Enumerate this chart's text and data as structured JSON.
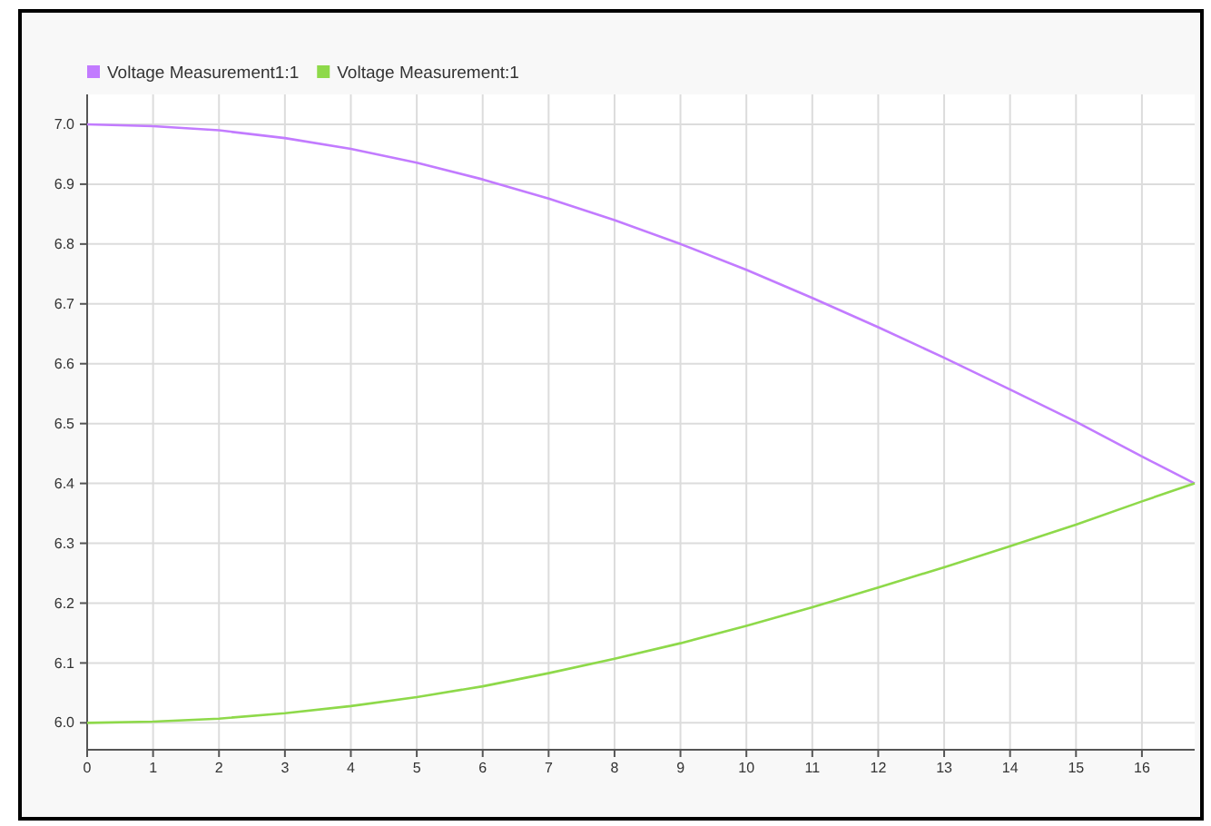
{
  "chart_data": {
    "type": "line",
    "x": [
      0,
      1,
      2,
      3,
      4,
      5,
      6,
      7,
      8,
      9,
      10,
      11,
      12,
      13,
      14,
      15,
      16,
      16.8
    ],
    "series": [
      {
        "name": "Voltage Measurement1:1",
        "color": "#c27bff",
        "values": [
          7.0,
          6.997,
          6.99,
          6.977,
          6.959,
          6.936,
          6.908,
          6.876,
          6.84,
          6.8,
          6.757,
          6.71,
          6.661,
          6.61,
          6.557,
          6.503,
          6.445,
          6.4
        ]
      },
      {
        "name": "Voltage Measurement:1",
        "color": "#8ed94a",
        "values": [
          6.0,
          6.002,
          6.007,
          6.016,
          6.028,
          6.043,
          6.061,
          6.083,
          6.107,
          6.133,
          6.162,
          6.193,
          6.226,
          6.26,
          6.295,
          6.331,
          6.37,
          6.4
        ]
      }
    ],
    "xlim": [
      0,
      16.8
    ],
    "xticks": [
      0,
      1,
      2,
      3,
      4,
      5,
      6,
      7,
      8,
      9,
      10,
      11,
      12,
      13,
      14,
      15,
      16
    ],
    "ylim": [
      5.955,
      7.05
    ],
    "yticks": [
      {
        "value": 6,
        "label": "6.0"
      },
      {
        "value": 6.1,
        "label": "6.1"
      },
      {
        "value": 6.2,
        "label": "6.2"
      },
      {
        "value": 6.3,
        "label": "6.3"
      },
      {
        "value": 6.4,
        "label": "6.4"
      },
      {
        "value": 6.5,
        "label": "6.5"
      },
      {
        "value": 6.6,
        "label": "6.6"
      },
      {
        "value": 6.7,
        "label": "6.7"
      },
      {
        "value": 6.8,
        "label": "6.8"
      },
      {
        "value": 6.9,
        "label": "6.9"
      },
      {
        "value": 7,
        "label": "7.0"
      }
    ],
    "grid": true,
    "legend": "top left",
    "marker": "none",
    "line_style": "solid"
  }
}
